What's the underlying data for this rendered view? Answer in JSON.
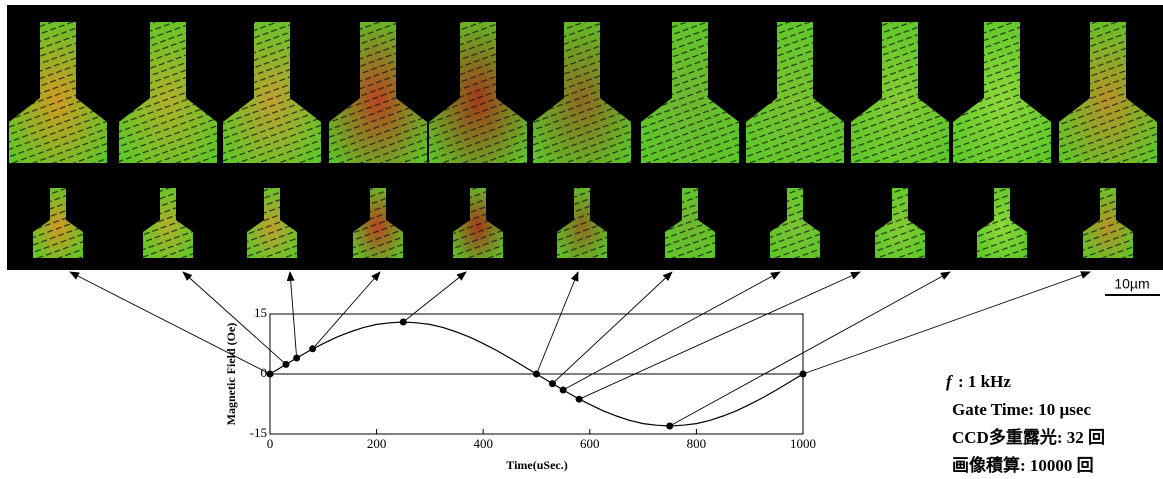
{
  "chart_data": {
    "type": "line",
    "xlabel": "Time(uSec.)",
    "ylabel": "Magnetic Field (Oe)",
    "xlim": [
      0,
      1000
    ],
    "ylim": [
      -15,
      15
    ],
    "xticks": [
      0,
      200,
      400,
      600,
      800,
      1000
    ],
    "yticks": [
      -15,
      0,
      15
    ],
    "series": [
      {
        "name": null,
        "color": "#000000",
        "x": [
          0,
          25,
          50,
          75,
          100,
          125,
          150,
          175,
          200,
          225,
          250,
          275,
          300,
          325,
          350,
          375,
          400,
          425,
          450,
          475,
          500,
          525,
          550,
          575,
          600,
          625,
          650,
          675,
          700,
          725,
          750,
          775,
          800,
          825,
          850,
          875,
          900,
          925,
          950,
          975,
          1000
        ],
        "values": [
          0,
          2.0,
          4.0,
          5.9,
          7.6,
          9.2,
          10.5,
          11.6,
          12.4,
          12.8,
          13,
          12.8,
          12.4,
          11.6,
          10.5,
          9.2,
          7.6,
          5.9,
          4.0,
          2.0,
          0,
          -2.0,
          -4.0,
          -5.9,
          -7.6,
          -9.2,
          -10.5,
          -11.6,
          -12.4,
          -12.8,
          -13,
          -12.8,
          -12.4,
          -11.6,
          -10.5,
          -9.2,
          -7.6,
          -5.9,
          -4.0,
          -2.0,
          0
        ]
      },
      {
        "name": null,
        "color": "#000000",
        "markers": true,
        "x": [
          0,
          30,
          50,
          80,
          250,
          500,
          530,
          550,
          580,
          750,
          1000
        ],
        "values": [
          0,
          2.4,
          4.0,
          6.3,
          13,
          0,
          -2.4,
          -4.0,
          -6.3,
          -13,
          0
        ]
      }
    ]
  },
  "scale_bar": "10µm",
  "conditions": {
    "f_symbol": "f",
    "f_value": ": 1 kHz",
    "gate_time": "Gate Time: 10 µsec",
    "ccd": "CCD多重露光: 32 回",
    "integration": "画像積算: 10000 回"
  }
}
